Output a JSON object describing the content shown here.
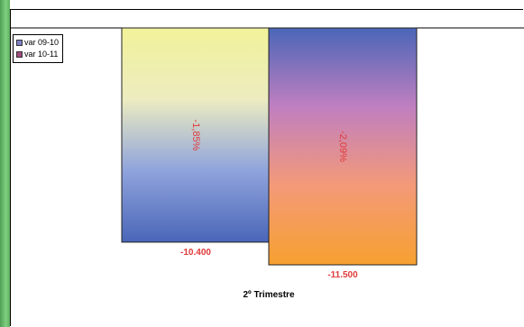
{
  "chart_data": {
    "type": "bar",
    "categories": [
      "2º Trimestre"
    ],
    "series": [
      {
        "name": "var 09-10",
        "values": [
          -10400
        ],
        "value_label": "-10.400",
        "inner_label": "-1,85%",
        "gradient": [
          "#f2f29a",
          "#ececc0",
          "#8fa3dc",
          "#4a66b8"
        ]
      },
      {
        "name": "var 10-11",
        "values": [
          -11500
        ],
        "value_label": "-11.500",
        "inner_label": "-2,09%",
        "gradient": [
          "#4a66b8",
          "#c07fc0",
          "#f49a78",
          "#f6a030"
        ]
      }
    ],
    "legend_swatches": [
      "#7f7fc8",
      "#a04a80"
    ],
    "legend_position": "top-left",
    "label_color": "#e03a3a",
    "grid": false
  }
}
